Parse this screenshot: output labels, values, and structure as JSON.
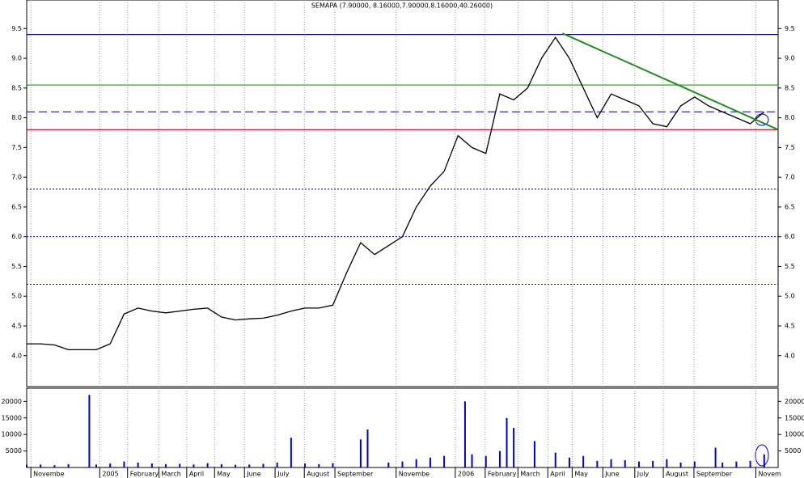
{
  "chart_data": [
    {
      "type": "line",
      "title": "SEMAPA (7.90000, 8.16000,7.90000,8.16000,40.26000)",
      "color": "#000000",
      "x": [
        0,
        2,
        4,
        6,
        8,
        10,
        12,
        14,
        16,
        18,
        20,
        22,
        24,
        26,
        28,
        30,
        32,
        34,
        36,
        38,
        40,
        42,
        44,
        46,
        48,
        50,
        52,
        54,
        56,
        58,
        60,
        62,
        64,
        66,
        68,
        70,
        72,
        74,
        76,
        78,
        80,
        82,
        84,
        86,
        88,
        90,
        92,
        94,
        96,
        98,
        100,
        102,
        104,
        106
      ],
      "values": [
        4.2,
        4.2,
        4.18,
        4.1,
        4.1,
        4.1,
        4.2,
        4.7,
        4.8,
        4.75,
        4.72,
        4.75,
        4.78,
        4.8,
        4.65,
        4.6,
        4.62,
        4.63,
        4.68,
        4.75,
        4.8,
        4.8,
        4.85,
        5.4,
        5.9,
        5.7,
        5.85,
        6.0,
        6.5,
        6.85,
        7.1,
        7.7,
        7.5,
        7.4,
        8.4,
        8.3,
        8.5,
        9.0,
        9.35,
        9.0,
        8.5,
        8.0,
        8.4,
        8.3,
        8.2,
        7.9,
        7.85,
        8.2,
        8.35,
        8.2,
        8.1,
        8.0,
        7.9,
        8.1
      ],
      "xlim": [
        0,
        108
      ],
      "ylim": [
        3.48,
        9.98
      ],
      "yticks": [
        {
          "value": 4,
          "label": "4.0"
        },
        {
          "value": 4.5,
          "label": "4.5"
        },
        {
          "value": 5,
          "label": "5.0"
        },
        {
          "value": 5.5,
          "label": "5.5"
        },
        {
          "value": 6,
          "label": "6.0"
        },
        {
          "value": 6.5,
          "label": "6.5"
        },
        {
          "value": 7,
          "label": "7.0"
        },
        {
          "value": 7.5,
          "label": "7.5"
        },
        {
          "value": 8,
          "label": "8.0"
        },
        {
          "value": 8.5,
          "label": "8.5"
        },
        {
          "value": 9,
          "label": "9.0"
        },
        {
          "value": 9.5,
          "label": "9.5"
        }
      ],
      "hlines": [
        {
          "value": 9.4,
          "color": "#000066",
          "style": "solid"
        },
        {
          "value": 8.55,
          "color": "#22aa22",
          "style": "solid"
        },
        {
          "value": 8.1,
          "color": "#000099",
          "style": "dashed"
        },
        {
          "value": 7.8,
          "color": "#cc0022",
          "style": "solid"
        },
        {
          "value": 6.8,
          "color": "#0000aa",
          "style": "dotted"
        },
        {
          "value": 6.0,
          "color": "#0000aa",
          "style": "dotted"
        },
        {
          "value": 5.2,
          "color": "#0000aa",
          "style": "dotted"
        }
      ],
      "trendline": {
        "x": [
          77,
          108
        ],
        "y": [
          9.42,
          7.8
        ],
        "color": "#228b22"
      }
    },
    {
      "type": "bar",
      "color": "#0000cc",
      "x": [
        0,
        2,
        4,
        6,
        9,
        10,
        12,
        14,
        16,
        18,
        20,
        22,
        24,
        26,
        28,
        30,
        32,
        34,
        36,
        38,
        40,
        42,
        44,
        48,
        49,
        52,
        54,
        56,
        58,
        60,
        63,
        64,
        66,
        68,
        69,
        70,
        73,
        76,
        78,
        80,
        82,
        84,
        86,
        88,
        90,
        92,
        94,
        96,
        99,
        100,
        102,
        104,
        106
      ],
      "values": [
        800,
        900,
        700,
        1000,
        22000,
        900,
        1200,
        1800,
        1500,
        1200,
        1000,
        1100,
        900,
        1300,
        1000,
        800,
        900,
        1100,
        1500,
        9000,
        1200,
        1000,
        1300,
        8500,
        11500,
        1500,
        1800,
        2500,
        3000,
        3500,
        20000,
        4000,
        3500,
        5000,
        15000,
        12000,
        8000,
        4500,
        3000,
        3500,
        2000,
        2500,
        2200,
        1800,
        2000,
        2500,
        1500,
        1800,
        6000,
        1500,
        1800,
        2000,
        4000
      ],
      "xlim": [
        0,
        108
      ],
      "ylim": [
        0,
        24000
      ],
      "yticks": [
        5000,
        10000,
        15000,
        20000
      ],
      "xticks": [
        {
          "value": 0.6,
          "label": "Novembe"
        },
        {
          "value": 10.5,
          "label": "2005"
        },
        {
          "value": 14.5,
          "label": "February"
        },
        {
          "value": 19,
          "label": "March"
        },
        {
          "value": 23,
          "label": "April"
        },
        {
          "value": 27,
          "label": "May"
        },
        {
          "value": 31.3,
          "label": "June"
        },
        {
          "value": 35.7,
          "label": "July"
        },
        {
          "value": 39.9,
          "label": "August"
        },
        {
          "value": 44.3,
          "label": "September"
        },
        {
          "value": 53.1,
          "label": "Novembe"
        },
        {
          "value": 61.6,
          "label": "2006"
        },
        {
          "value": 65.9,
          "label": "February"
        },
        {
          "value": 70.6,
          "label": "March"
        },
        {
          "value": 74.9,
          "label": "April"
        },
        {
          "value": 78.4,
          "label": "May"
        },
        {
          "value": 82.8,
          "label": "June"
        },
        {
          "value": 87.4,
          "label": "July"
        },
        {
          "value": 91.5,
          "label": "August"
        },
        {
          "value": 95.9,
          "label": "September"
        },
        {
          "value": 104.8,
          "label": "Novem"
        }
      ]
    }
  ]
}
